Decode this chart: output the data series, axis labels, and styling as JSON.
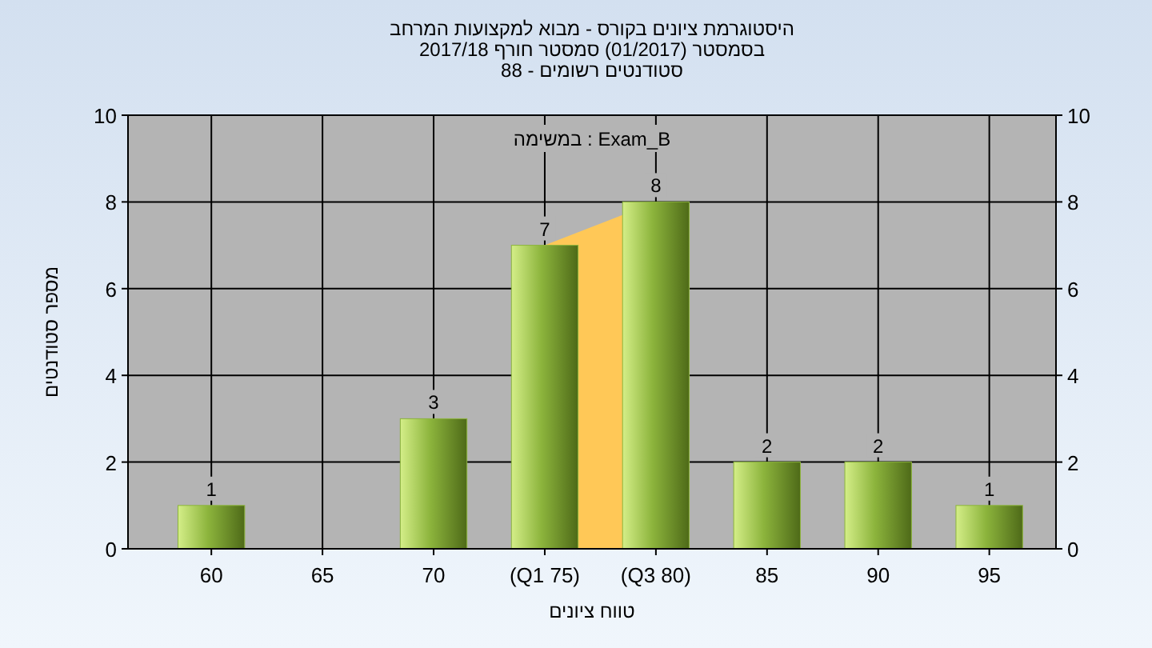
{
  "chart_data": {
    "type": "bar",
    "title": "היסטוגרמת ציונים בקורס - מבוא למקצועות המרחב",
    "subtitle": "בסמסטר (01/2017) סמסטר חורף 2017/18",
    "annotations": [
      "סטודנטים רשומים - 88",
      "במשימה : Exam_B"
    ],
    "xlabel": "טווח ציונים",
    "ylabel": "מספר סטודנטים",
    "categories": [
      "60",
      "65",
      "70",
      "(Q1 75)",
      "(Q3 80)",
      "85",
      "90",
      "95"
    ],
    "values": [
      1,
      0,
      3,
      7,
      8,
      2,
      2,
      1
    ],
    "color": "#8cb43c",
    "value_labels": [
      "1",
      null,
      "3",
      "7",
      "8",
      "2",
      "2",
      "1"
    ],
    "bands": [
      {
        "axis": "x",
        "from": "(Q1 75)",
        "to": "(Q3 80)",
        "color": "#ffc857"
      }
    ],
    "ylim": [
      0,
      10
    ],
    "yticks": [
      0,
      2,
      4,
      6,
      8,
      10
    ],
    "y2lim": [
      0,
      10
    ],
    "y2ticks": [
      0,
      2,
      4,
      6,
      8,
      10
    ],
    "grid": true
  }
}
